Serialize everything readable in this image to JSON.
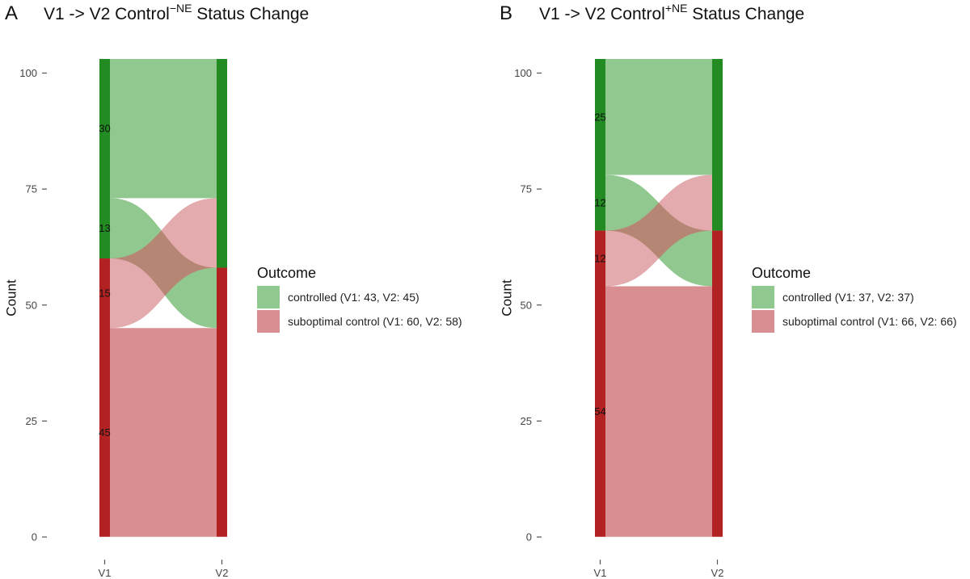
{
  "chart_data": [
    {
      "type": "alluvial",
      "panel_letter": "A",
      "title": {
        "main": "V1 -> V2 Control",
        "sup": "-NE",
        "tail": " Status Change"
      },
      "ylabel": "Count",
      "xlabel": "",
      "categories": [
        "V1",
        "V2"
      ],
      "ylim": [
        0,
        103
      ],
      "yticks": [
        0,
        25,
        50,
        75,
        100
      ],
      "colors": {
        "controlled": "#228B22",
        "suboptimal": "#B22222",
        "controlled_flow": "#90C890",
        "suboptimal_flow": "#D98F92",
        "overlap": "#A26A55"
      },
      "flows": [
        {
          "from": "controlled",
          "to": "controlled",
          "count": 30
        },
        {
          "from": "controlled",
          "to": "suboptimal",
          "count": 13
        },
        {
          "from": "suboptimal",
          "to": "controlled",
          "count": 15
        },
        {
          "from": "suboptimal",
          "to": "suboptimal",
          "count": 45
        }
      ],
      "strata": {
        "V1": {
          "controlled": 43,
          "suboptimal": 60
        },
        "V2": {
          "controlled": 45,
          "suboptimal": 58
        }
      },
      "flow_labels": [
        "30",
        "13",
        "15",
        "45"
      ],
      "legend": {
        "title": "Outcome",
        "entries": [
          {
            "key": "controlled",
            "label": "controlled (V1: 43, V2: 45)"
          },
          {
            "key": "suboptimal",
            "label": "suboptimal control (V1: 60, V2: 58)"
          }
        ]
      }
    },
    {
      "type": "alluvial",
      "panel_letter": "B",
      "title": {
        "main": "V1 -> V2 Control",
        "sup": "+NE",
        "tail": " Status Change"
      },
      "ylabel": "Count",
      "xlabel": "",
      "categories": [
        "V1",
        "V2"
      ],
      "ylim": [
        0,
        103
      ],
      "yticks": [
        0,
        25,
        50,
        75,
        100
      ],
      "colors": {
        "controlled": "#228B22",
        "suboptimal": "#B22222",
        "controlled_flow": "#90C890",
        "suboptimal_flow": "#D98F92",
        "overlap": "#A26A55"
      },
      "flows": [
        {
          "from": "controlled",
          "to": "controlled",
          "count": 25
        },
        {
          "from": "controlled",
          "to": "suboptimal",
          "count": 12
        },
        {
          "from": "suboptimal",
          "to": "controlled",
          "count": 12
        },
        {
          "from": "suboptimal",
          "to": "suboptimal",
          "count": 54
        }
      ],
      "strata": {
        "V1": {
          "controlled": 37,
          "suboptimal": 66
        },
        "V2": {
          "controlled": 37,
          "suboptimal": 66
        }
      },
      "flow_labels": [
        "25",
        "12",
        "12",
        "54"
      ],
      "legend": {
        "title": "Outcome",
        "entries": [
          {
            "key": "controlled",
            "label": "controlled (V1: 37, V2: 37)"
          },
          {
            "key": "suboptimal",
            "label": "suboptimal control (V1: 66, V2: 66)"
          }
        ]
      }
    }
  ]
}
